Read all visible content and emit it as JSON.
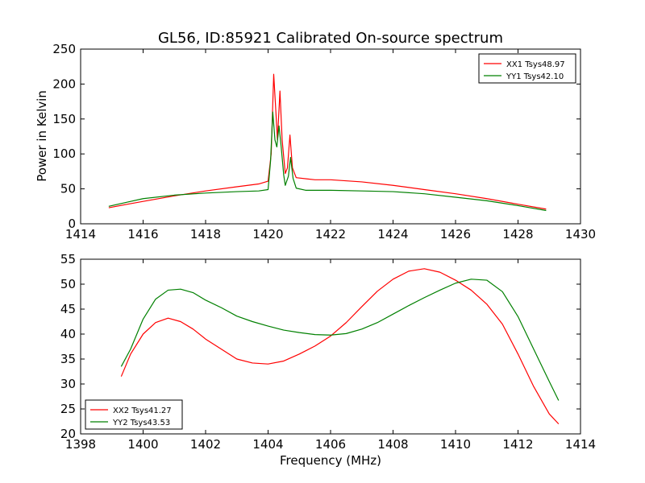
{
  "chart_data": [
    {
      "type": "line",
      "title": "GL56, ID:85921 Calibrated On-source spectrum",
      "xlabel": "",
      "ylabel": "Power in Kelvin",
      "xlim": [
        1414,
        1430
      ],
      "ylim": [
        0,
        250
      ],
      "xticks": [
        "1414",
        "1416",
        "1418",
        "1420",
        "1422",
        "1424",
        "1426",
        "1428",
        "1430"
      ],
      "yticks": [
        "0",
        "50",
        "100",
        "150",
        "200",
        "250"
      ],
      "legend_position": "top-right",
      "grid": false,
      "series": [
        {
          "name": "XX1 Tsys48.97",
          "color": "#ff0000",
          "points": [
            [
              1414.9,
              23
            ],
            [
              1415.5,
              28
            ],
            [
              1416,
              32
            ],
            [
              1417,
              40
            ],
            [
              1418,
              47
            ],
            [
              1419,
              53
            ],
            [
              1419.7,
              57
            ],
            [
              1420.0,
              61
            ],
            [
              1420.1,
              100
            ],
            [
              1420.18,
              214
            ],
            [
              1420.25,
              160
            ],
            [
              1420.3,
              120
            ],
            [
              1420.38,
              190
            ],
            [
              1420.45,
              120
            ],
            [
              1420.55,
              72
            ],
            [
              1420.62,
              80
            ],
            [
              1420.7,
              127
            ],
            [
              1420.78,
              80
            ],
            [
              1420.9,
              66
            ],
            [
              1421.5,
              63
            ],
            [
              1422,
              63
            ],
            [
              1423,
              60
            ],
            [
              1424,
              55
            ],
            [
              1425,
              49
            ],
            [
              1426,
              43
            ],
            [
              1427,
              36
            ],
            [
              1428,
              28
            ],
            [
              1428.9,
              21
            ]
          ]
        },
        {
          "name": "YY1 Tsys42.10",
          "color": "#008000",
          "points": [
            [
              1414.9,
              25
            ],
            [
              1415.5,
              31
            ],
            [
              1416,
              36
            ],
            [
              1417,
              41
            ],
            [
              1418,
              44
            ],
            [
              1419,
              46
            ],
            [
              1419.7,
              47
            ],
            [
              1420.0,
              49
            ],
            [
              1420.08,
              90
            ],
            [
              1420.15,
              160
            ],
            [
              1420.22,
              120
            ],
            [
              1420.28,
              110
            ],
            [
              1420.35,
              140
            ],
            [
              1420.42,
              110
            ],
            [
              1420.5,
              70
            ],
            [
              1420.55,
              55
            ],
            [
              1420.65,
              68
            ],
            [
              1420.72,
              95
            ],
            [
              1420.8,
              65
            ],
            [
              1420.9,
              51
            ],
            [
              1421.2,
              48
            ],
            [
              1422,
              48
            ],
            [
              1423,
              47
            ],
            [
              1424,
              46
            ],
            [
              1425,
              43
            ],
            [
              1426,
              38
            ],
            [
              1427,
              33
            ],
            [
              1428,
              26
            ],
            [
              1428.9,
              19
            ]
          ]
        }
      ]
    },
    {
      "type": "line",
      "title": "",
      "xlabel": "Frequency (MHz)",
      "ylabel": "",
      "xlim": [
        1398,
        1414
      ],
      "ylim": [
        20,
        55
      ],
      "xticks": [
        "1398",
        "1400",
        "1402",
        "1404",
        "1406",
        "1408",
        "1410",
        "1412",
        "1414"
      ],
      "yticks": [
        "20",
        "25",
        "30",
        "35",
        "40",
        "45",
        "50",
        "55"
      ],
      "legend_position": "bottom-left",
      "grid": false,
      "series": [
        {
          "name": "XX2 Tsys41.27",
          "color": "#ff0000",
          "points": [
            [
              1399.3,
              31.5
            ],
            [
              1399.6,
              36
            ],
            [
              1400,
              40
            ],
            [
              1400.4,
              42.3
            ],
            [
              1400.8,
              43.2
            ],
            [
              1401.2,
              42.5
            ],
            [
              1401.6,
              41
            ],
            [
              1402,
              39
            ],
            [
              1402.5,
              37
            ],
            [
              1403,
              35
            ],
            [
              1403.5,
              34.2
            ],
            [
              1404,
              34
            ],
            [
              1404.5,
              34.6
            ],
            [
              1405,
              36
            ],
            [
              1405.5,
              37.6
            ],
            [
              1406,
              39.6
            ],
            [
              1406.5,
              42.3
            ],
            [
              1407,
              45.5
            ],
            [
              1407.5,
              48.6
            ],
            [
              1408,
              51
            ],
            [
              1408.5,
              52.6
            ],
            [
              1409,
              53.1
            ],
            [
              1409.5,
              52.4
            ],
            [
              1410,
              50.8
            ],
            [
              1410.5,
              48.8
            ],
            [
              1411,
              46
            ],
            [
              1411.5,
              42
            ],
            [
              1412,
              36
            ],
            [
              1412.5,
              29.5
            ],
            [
              1413,
              24
            ],
            [
              1413.3,
              22
            ]
          ]
        },
        {
          "name": "YY2 Tsys43.53",
          "color": "#008000",
          "points": [
            [
              1399.3,
              33.5
            ],
            [
              1399.6,
              37
            ],
            [
              1400,
              43
            ],
            [
              1400.4,
              47
            ],
            [
              1400.8,
              48.8
            ],
            [
              1401.2,
              49
            ],
            [
              1401.6,
              48.3
            ],
            [
              1402,
              46.8
            ],
            [
              1402.5,
              45.3
            ],
            [
              1403,
              43.6
            ],
            [
              1403.5,
              42.5
            ],
            [
              1404,
              41.6
            ],
            [
              1404.5,
              40.8
            ],
            [
              1405,
              40.3
            ],
            [
              1405.5,
              39.9
            ],
            [
              1406,
              39.8
            ],
            [
              1406.5,
              40.1
            ],
            [
              1407,
              41
            ],
            [
              1407.5,
              42.3
            ],
            [
              1408,
              44
            ],
            [
              1408.5,
              45.7
            ],
            [
              1409,
              47.3
            ],
            [
              1409.5,
              48.8
            ],
            [
              1410,
              50.2
            ],
            [
              1410.5,
              51
            ],
            [
              1411,
              50.8
            ],
            [
              1411.5,
              48.5
            ],
            [
              1412,
              43.5
            ],
            [
              1412.5,
              37
            ],
            [
              1413,
              30.5
            ],
            [
              1413.3,
              26.7
            ]
          ]
        }
      ]
    }
  ]
}
